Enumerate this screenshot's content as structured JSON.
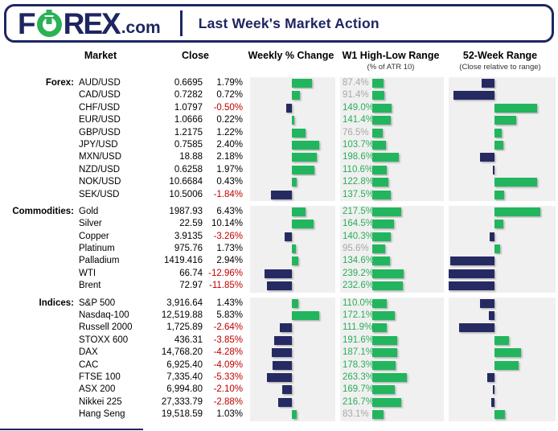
{
  "header": {
    "logo_f": "F",
    "logo_rex": "REX",
    "logo_com": ".com",
    "title": "Last Week's Market Action"
  },
  "columns": {
    "market": "Market",
    "close": "Close",
    "weekly": "Weekly % Change",
    "w1": "W1 High-Low Range",
    "w1_sub": "(% of ATR 10)",
    "r52": "52-Week Range",
    "r52_sub": "(Close relative to range)"
  },
  "colors": {
    "positive_bar_green": "#22b55e",
    "negative_bar_navy": "#262a63",
    "negative_text_red": "#c00000",
    "w1_text_green": "#27ae57",
    "w1_text_gray": "#a8a8a8",
    "panel_background": "#f0f0f0",
    "brand_navy": "#1e2660",
    "brand_green": "#2bb257"
  },
  "chart_data": {
    "type": "table",
    "title": "Last Week's Market Action",
    "description": "Market table with embedded data bars: Weekly % Change (diverging bar, green positive / navy negative, scaled per section), W1 High-Low Range as % of ATR 10 (green bar, label gray when below 100%), and 52-Week Range showing close relative to range midpoint (diverging bar, estimated -1 to 1).",
    "sections": [
      {
        "label": "Forex:",
        "rows": [
          {
            "market": "AUD/USD",
            "close": "0.6695",
            "weekly_pct": 1.79,
            "w1_pct": 87.4,
            "range52": -0.28
          },
          {
            "market": "CAD/USD",
            "close": "0.7282",
            "weekly_pct": 0.72,
            "w1_pct": 91.4,
            "range52": -0.89
          },
          {
            "market": "CHF/USD",
            "close": "1.0797",
            "weekly_pct": -0.5,
            "w1_pct": 149.0,
            "range52": 0.93
          },
          {
            "market": "EUR/USD",
            "close": "1.0666",
            "weekly_pct": 0.22,
            "w1_pct": 141.4,
            "range52": 0.47
          },
          {
            "market": "GBP/USD",
            "close": "1.2175",
            "weekly_pct": 1.22,
            "w1_pct": 76.5,
            "range52": 0.16
          },
          {
            "market": "JPY/USD",
            "close": "0.7585",
            "weekly_pct": 2.4,
            "w1_pct": 103.7,
            "range52": 0.19
          },
          {
            "market": "MXN/USD",
            "close": "18.88",
            "weekly_pct": 2.18,
            "w1_pct": 198.6,
            "range52": -0.32
          },
          {
            "market": "NZD/USD",
            "close": "0.6258",
            "weekly_pct": 1.97,
            "w1_pct": 110.6,
            "range52": -0.03
          },
          {
            "market": "NOK/USD",
            "close": "10.6684",
            "weekly_pct": 0.43,
            "w1_pct": 122.8,
            "range52": 0.93
          },
          {
            "market": "SEK/USD",
            "close": "10.5006",
            "weekly_pct": -1.84,
            "w1_pct": 137.5,
            "range52": 0.21
          }
        ]
      },
      {
        "label": "Commodities:",
        "rows": [
          {
            "market": "Gold",
            "close": "1987.93",
            "weekly_pct": 6.43,
            "w1_pct": 217.5,
            "range52": 1.0
          },
          {
            "market": "Silver",
            "close": "22.59",
            "weekly_pct": 10.14,
            "w1_pct": 164.5,
            "range52": 0.19
          },
          {
            "market": "Copper",
            "close": "3.9135",
            "weekly_pct": -3.26,
            "w1_pct": 140.3,
            "range52": -0.11
          },
          {
            "market": "Platinum",
            "close": "975.76",
            "weekly_pct": 1.73,
            "w1_pct": 95.6,
            "range52": 0.12
          },
          {
            "market": "Palladium",
            "close": "1419.416",
            "weekly_pct": 2.94,
            "w1_pct": 134.6,
            "range52": -0.97
          },
          {
            "market": "WTI",
            "close": "66.74",
            "weekly_pct": -12.96,
            "w1_pct": 239.2,
            "range52": -1.0
          },
          {
            "market": "Brent",
            "close": "72.97",
            "weekly_pct": -11.85,
            "w1_pct": 232.6,
            "range52": -1.0
          }
        ]
      },
      {
        "label": "Indices:",
        "rows": [
          {
            "market": "S&P 500",
            "close": "3,916.64",
            "weekly_pct": 1.43,
            "w1_pct": 110.0,
            "range52": -0.32
          },
          {
            "market": "Nasdaq-100",
            "close": "12,519.88",
            "weekly_pct": 5.83,
            "w1_pct": 172.1,
            "range52": -0.12
          },
          {
            "market": "Russell 2000",
            "close": "1,725.89",
            "weekly_pct": -2.64,
            "w1_pct": 111.9,
            "range52": -0.77
          },
          {
            "market": "STOXX 600",
            "close": "436.31",
            "weekly_pct": -3.85,
            "w1_pct": 191.6,
            "range52": 0.32
          },
          {
            "market": "DAX",
            "close": "14,768.20",
            "weekly_pct": -4.28,
            "w1_pct": 187.1,
            "range52": 0.58
          },
          {
            "market": "CAC",
            "close": "6,925.40",
            "weekly_pct": -4.09,
            "w1_pct": 178.3,
            "range52": 0.52
          },
          {
            "market": "FTSE 100",
            "close": "7,335.40",
            "weekly_pct": -5.33,
            "w1_pct": 263.3,
            "range52": -0.16
          },
          {
            "market": "ASX 200",
            "close": "6,994.80",
            "weekly_pct": -2.1,
            "w1_pct": 169.7,
            "range52": -0.04
          },
          {
            "market": "Nikkei 225",
            "close": "27,333.79",
            "weekly_pct": -2.88,
            "w1_pct": 216.7,
            "range52": -0.07
          },
          {
            "market": "Hang Seng",
            "close": "19,518.59",
            "weekly_pct": 1.03,
            "w1_pct": 83.1,
            "range52": 0.22
          }
        ]
      }
    ]
  }
}
